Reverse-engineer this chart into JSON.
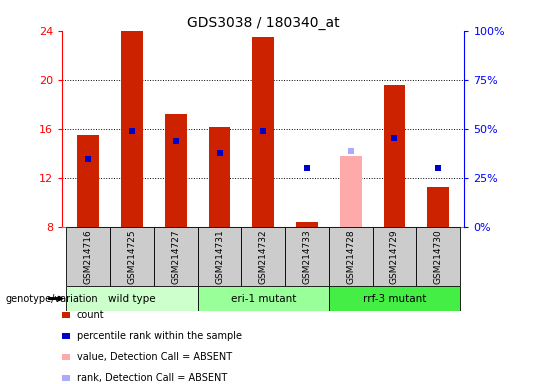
{
  "title": "GDS3038 / 180340_at",
  "samples": [
    "GSM214716",
    "GSM214725",
    "GSM214727",
    "GSM214731",
    "GSM214732",
    "GSM214733",
    "GSM214728",
    "GSM214729",
    "GSM214730"
  ],
  "groups": [
    {
      "label": "wild type",
      "indices": [
        0,
        1,
        2
      ],
      "color": "#ccffcc"
    },
    {
      "label": "eri-1 mutant",
      "indices": [
        3,
        4,
        5
      ],
      "color": "#99ff99"
    },
    {
      "label": "rrf-3 mutant",
      "indices": [
        6,
        7,
        8
      ],
      "color": "#44ee44"
    }
  ],
  "count_values": [
    15.5,
    24.0,
    17.2,
    16.1,
    23.5,
    8.4,
    null,
    19.6,
    11.2
  ],
  "count_bottom": [
    8,
    8,
    8,
    8,
    8,
    8,
    8,
    8,
    8
  ],
  "percentile_values": [
    13.5,
    15.8,
    15.0,
    14.0,
    15.8,
    12.8,
    null,
    15.2,
    12.8
  ],
  "absent_value": [
    null,
    null,
    null,
    null,
    null,
    null,
    13.8,
    null,
    null
  ],
  "absent_bottom": [
    null,
    null,
    null,
    null,
    null,
    null,
    8,
    null,
    null
  ],
  "absent_rank": [
    null,
    null,
    null,
    null,
    null,
    null,
    14.2,
    null,
    null
  ],
  "ylim": [
    8,
    24
  ],
  "yticks": [
    8,
    12,
    16,
    20,
    24
  ],
  "right_ytick_labels": [
    "0%",
    "25%",
    "50%",
    "75%",
    "100%"
  ],
  "right_data_ticks": [
    8,
    12,
    16,
    20,
    24
  ],
  "bar_color": "#cc2200",
  "percentile_color": "#0000cc",
  "absent_bar_color": "#ffaaaa",
  "absent_rank_color": "#aaaaff",
  "bg_label": "#cccccc",
  "bar_width": 0.5,
  "legend_items": [
    [
      "#cc2200",
      "count"
    ],
    [
      "#0000cc",
      "percentile rank within the sample"
    ],
    [
      "#ffaaaa",
      "value, Detection Call = ABSENT"
    ],
    [
      "#aaaaff",
      "rank, Detection Call = ABSENT"
    ]
  ]
}
